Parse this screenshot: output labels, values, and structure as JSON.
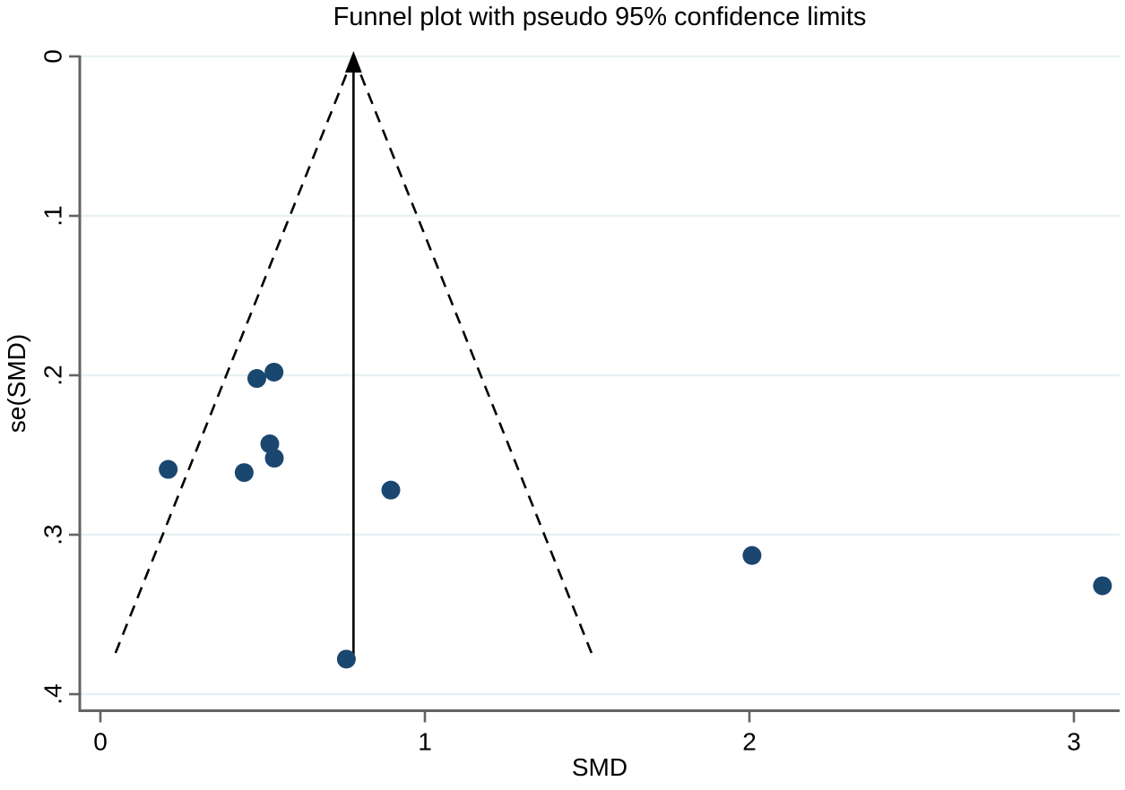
{
  "chart_data": {
    "type": "scatter",
    "subtype": "funnel-plot",
    "title": "Funnel plot with pseudo 95% confidence limits",
    "xlabel": "SMD",
    "ylabel": "se(SMD)",
    "x_ticks": [
      {
        "label": "0",
        "value": 0
      },
      {
        "label": "1",
        "value": 1
      },
      {
        "label": "2",
        "value": 2
      },
      {
        "label": "3",
        "value": 3
      }
    ],
    "y_ticks": [
      {
        "label": "0",
        "value": 0
      },
      {
        "label": ".1",
        "value": 0.1
      },
      {
        "label": ".2",
        "value": 0.2
      },
      {
        "label": ".3",
        "value": 0.3
      },
      {
        "label": ".4",
        "value": 0.4
      }
    ],
    "xlim": [
      -0.064,
      3.141
    ],
    "ylim": [
      0,
      0.41
    ],
    "y_axis_reversed": true,
    "grid": "horizontal-light",
    "legend": "none",
    "points": [
      {
        "x": 0.209,
        "se": 0.259
      },
      {
        "x": 0.443,
        "se": 0.261
      },
      {
        "x": 0.482,
        "se": 0.202
      },
      {
        "x": 0.535,
        "se": 0.198
      },
      {
        "x": 0.522,
        "se": 0.243
      },
      {
        "x": 0.536,
        "se": 0.252
      },
      {
        "x": 0.895,
        "se": 0.272
      },
      {
        "x": 0.758,
        "se": 0.378
      },
      {
        "x": 2.008,
        "se": 0.313
      },
      {
        "x": 3.088,
        "se": 0.332
      }
    ],
    "pooled_effect_line": {
      "x": 0.78,
      "se_from": 0,
      "se_to": 0.378,
      "style": "solid",
      "arrow": "up"
    },
    "confidence_limits": {
      "z": 1.96,
      "apex_x": 0.78,
      "apex_se": 0,
      "se_end": 0.376,
      "left_end_x": 0.043,
      "right_end_x": 1.517,
      "style": "dashed"
    },
    "colors": {
      "point": "#1a476f",
      "line": "#000000",
      "grid": "#e8f1f5",
      "axis": "#636363",
      "text": "#000000",
      "background": "#ffffff"
    }
  }
}
